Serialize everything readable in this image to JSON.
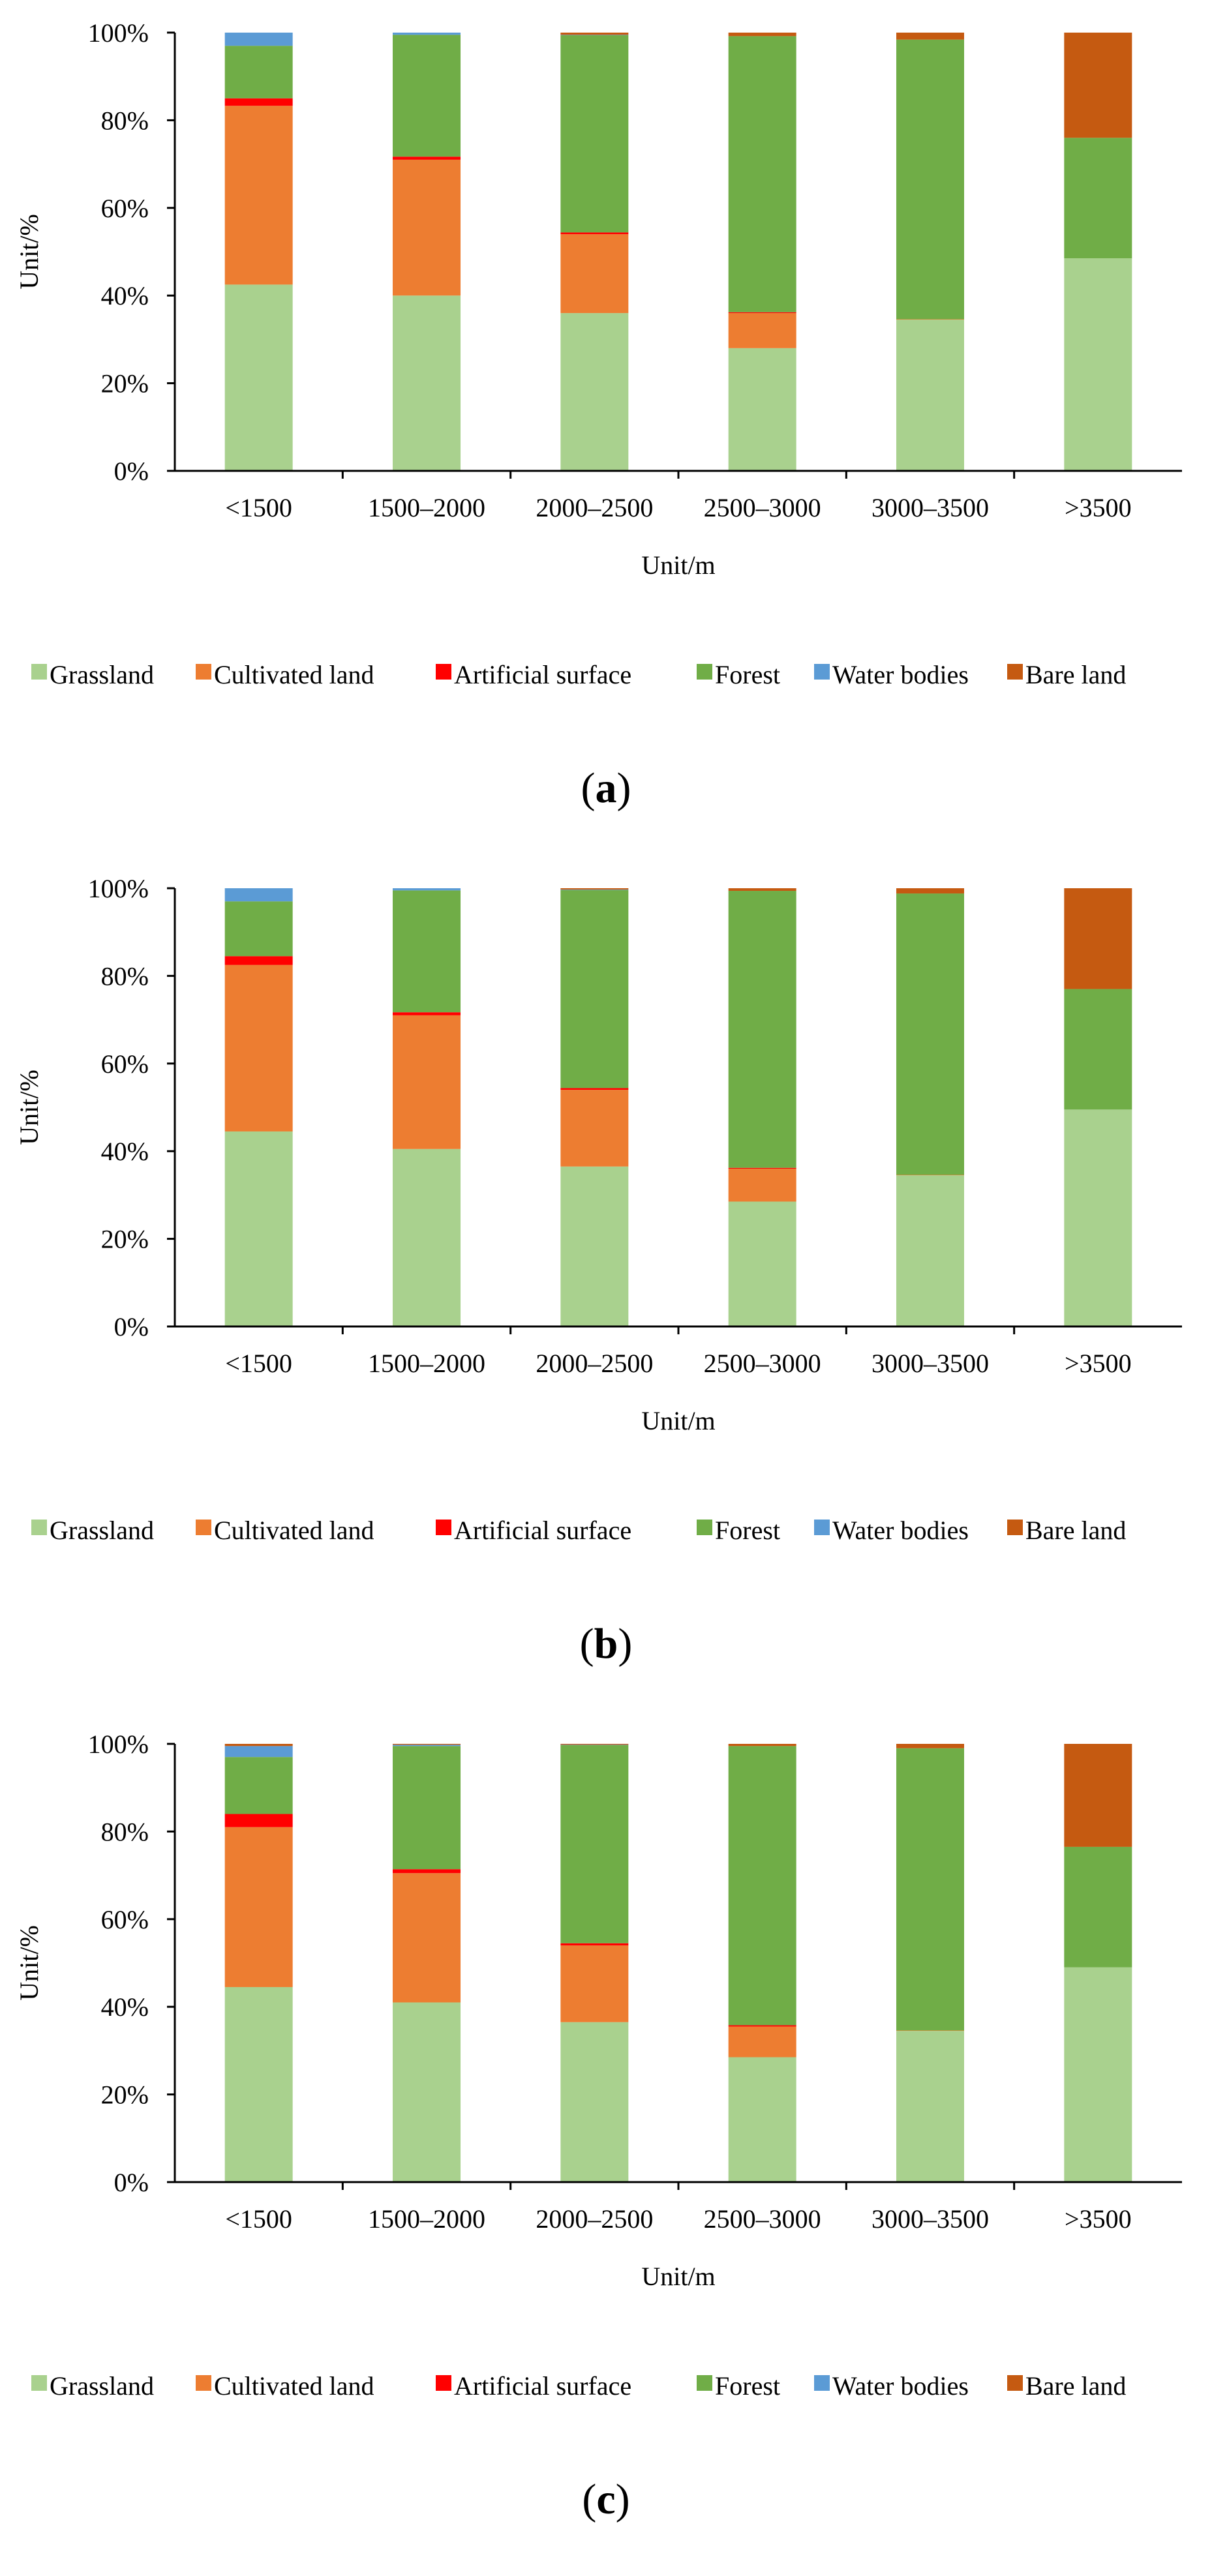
{
  "chart_data": [
    {
      "type": "bar",
      "stacked": true,
      "panel_label": "(a)",
      "panel_letter": "a",
      "title": "",
      "xlabel": "Unit/m",
      "ylabel": "Unit/%",
      "ylim": [
        0,
        100
      ],
      "yticks": [
        "0%",
        "20%",
        "40%",
        "60%",
        "80%",
        "100%"
      ],
      "categories": [
        "<1500",
        "1500–2000",
        "2000–2500",
        "2500–3000",
        "3000–3500",
        ">3500"
      ],
      "series": [
        {
          "name": "Grassland",
          "color": "#a9d18e",
          "values": [
            42.5,
            40.0,
            36.0,
            28.0,
            34.5,
            48.5
          ]
        },
        {
          "name": "Cultivated land",
          "color": "#ed7d31",
          "values": [
            40.8,
            31.0,
            18.0,
            8.0,
            0.1,
            0.0
          ]
        },
        {
          "name": "Artificial surface",
          "color": "#ff0000",
          "values": [
            1.7,
            0.7,
            0.4,
            0.2,
            0.0,
            0.0
          ]
        },
        {
          "name": "Forest",
          "color": "#70ad47",
          "values": [
            12.0,
            27.8,
            45.0,
            63.0,
            63.8,
            27.5
          ]
        },
        {
          "name": "Water bodies",
          "color": "#5b9bd5",
          "values": [
            3.0,
            0.5,
            0.1,
            0.0,
            0.0,
            0.0
          ]
        },
        {
          "name": "Bare land",
          "color": "#c55a11",
          "values": [
            0.0,
            0.0,
            0.5,
            0.8,
            1.6,
            24.0
          ]
        }
      ]
    },
    {
      "type": "bar",
      "stacked": true,
      "panel_label": "(b)",
      "panel_letter": "b",
      "title": "",
      "xlabel": "Unit/m",
      "ylabel": "Unit/%",
      "ylim": [
        0,
        100
      ],
      "yticks": [
        "0%",
        "20%",
        "40%",
        "60%",
        "80%",
        "100%"
      ],
      "categories": [
        "<1500",
        "1500–2000",
        "2000–2500",
        "2500–3000",
        "3000–3500",
        ">3500"
      ],
      "series": [
        {
          "name": "Grassland",
          "color": "#a9d18e",
          "values": [
            44.5,
            40.5,
            36.5,
            28.5,
            34.5,
            49.5
          ]
        },
        {
          "name": "Cultivated land",
          "color": "#ed7d31",
          "values": [
            38.0,
            30.5,
            17.5,
            7.5,
            0.1,
            0.0
          ]
        },
        {
          "name": "Artificial surface",
          "color": "#ff0000",
          "values": [
            2.0,
            0.7,
            0.4,
            0.2,
            0.0,
            0.0
          ]
        },
        {
          "name": "Forest",
          "color": "#70ad47",
          "values": [
            12.5,
            27.8,
            45.2,
            63.2,
            64.2,
            27.5
          ]
        },
        {
          "name": "Water bodies",
          "color": "#5b9bd5",
          "values": [
            3.0,
            0.5,
            0.1,
            0.0,
            0.0,
            0.0
          ]
        },
        {
          "name": "Bare land",
          "color": "#c55a11",
          "values": [
            0.0,
            0.0,
            0.3,
            0.6,
            1.2,
            23.0
          ]
        }
      ]
    },
    {
      "type": "bar",
      "stacked": true,
      "panel_label": "(c)",
      "panel_letter": "c",
      "title": "",
      "xlabel": "Unit/m",
      "ylabel": "Unit/%",
      "ylim": [
        0,
        100
      ],
      "yticks": [
        "0%",
        "20%",
        "40%",
        "60%",
        "80%",
        "100%"
      ],
      "categories": [
        "<1500",
        "1500–2000",
        "2000–2500",
        "2500–3000",
        "3000–3500",
        ">3500"
      ],
      "series": [
        {
          "name": "Grassland",
          "color": "#a9d18e",
          "values": [
            44.5,
            41.0,
            36.5,
            28.5,
            34.5,
            49.0
          ]
        },
        {
          "name": "Cultivated land",
          "color": "#ed7d31",
          "values": [
            36.5,
            29.5,
            17.5,
            7.0,
            0.1,
            0.0
          ]
        },
        {
          "name": "Artificial surface",
          "color": "#ff0000",
          "values": [
            3.0,
            0.9,
            0.5,
            0.3,
            0.0,
            0.0
          ]
        },
        {
          "name": "Forest",
          "color": "#70ad47",
          "values": [
            13.0,
            28.1,
            45.2,
            63.7,
            64.4,
            27.5
          ]
        },
        {
          "name": "Water bodies",
          "color": "#5b9bd5",
          "values": [
            2.5,
            0.3,
            0.1,
            0.0,
            0.0,
            0.0
          ]
        },
        {
          "name": "Bare land",
          "color": "#c55a11",
          "values": [
            0.5,
            0.2,
            0.2,
            0.5,
            1.0,
            23.5
          ]
        }
      ]
    }
  ]
}
